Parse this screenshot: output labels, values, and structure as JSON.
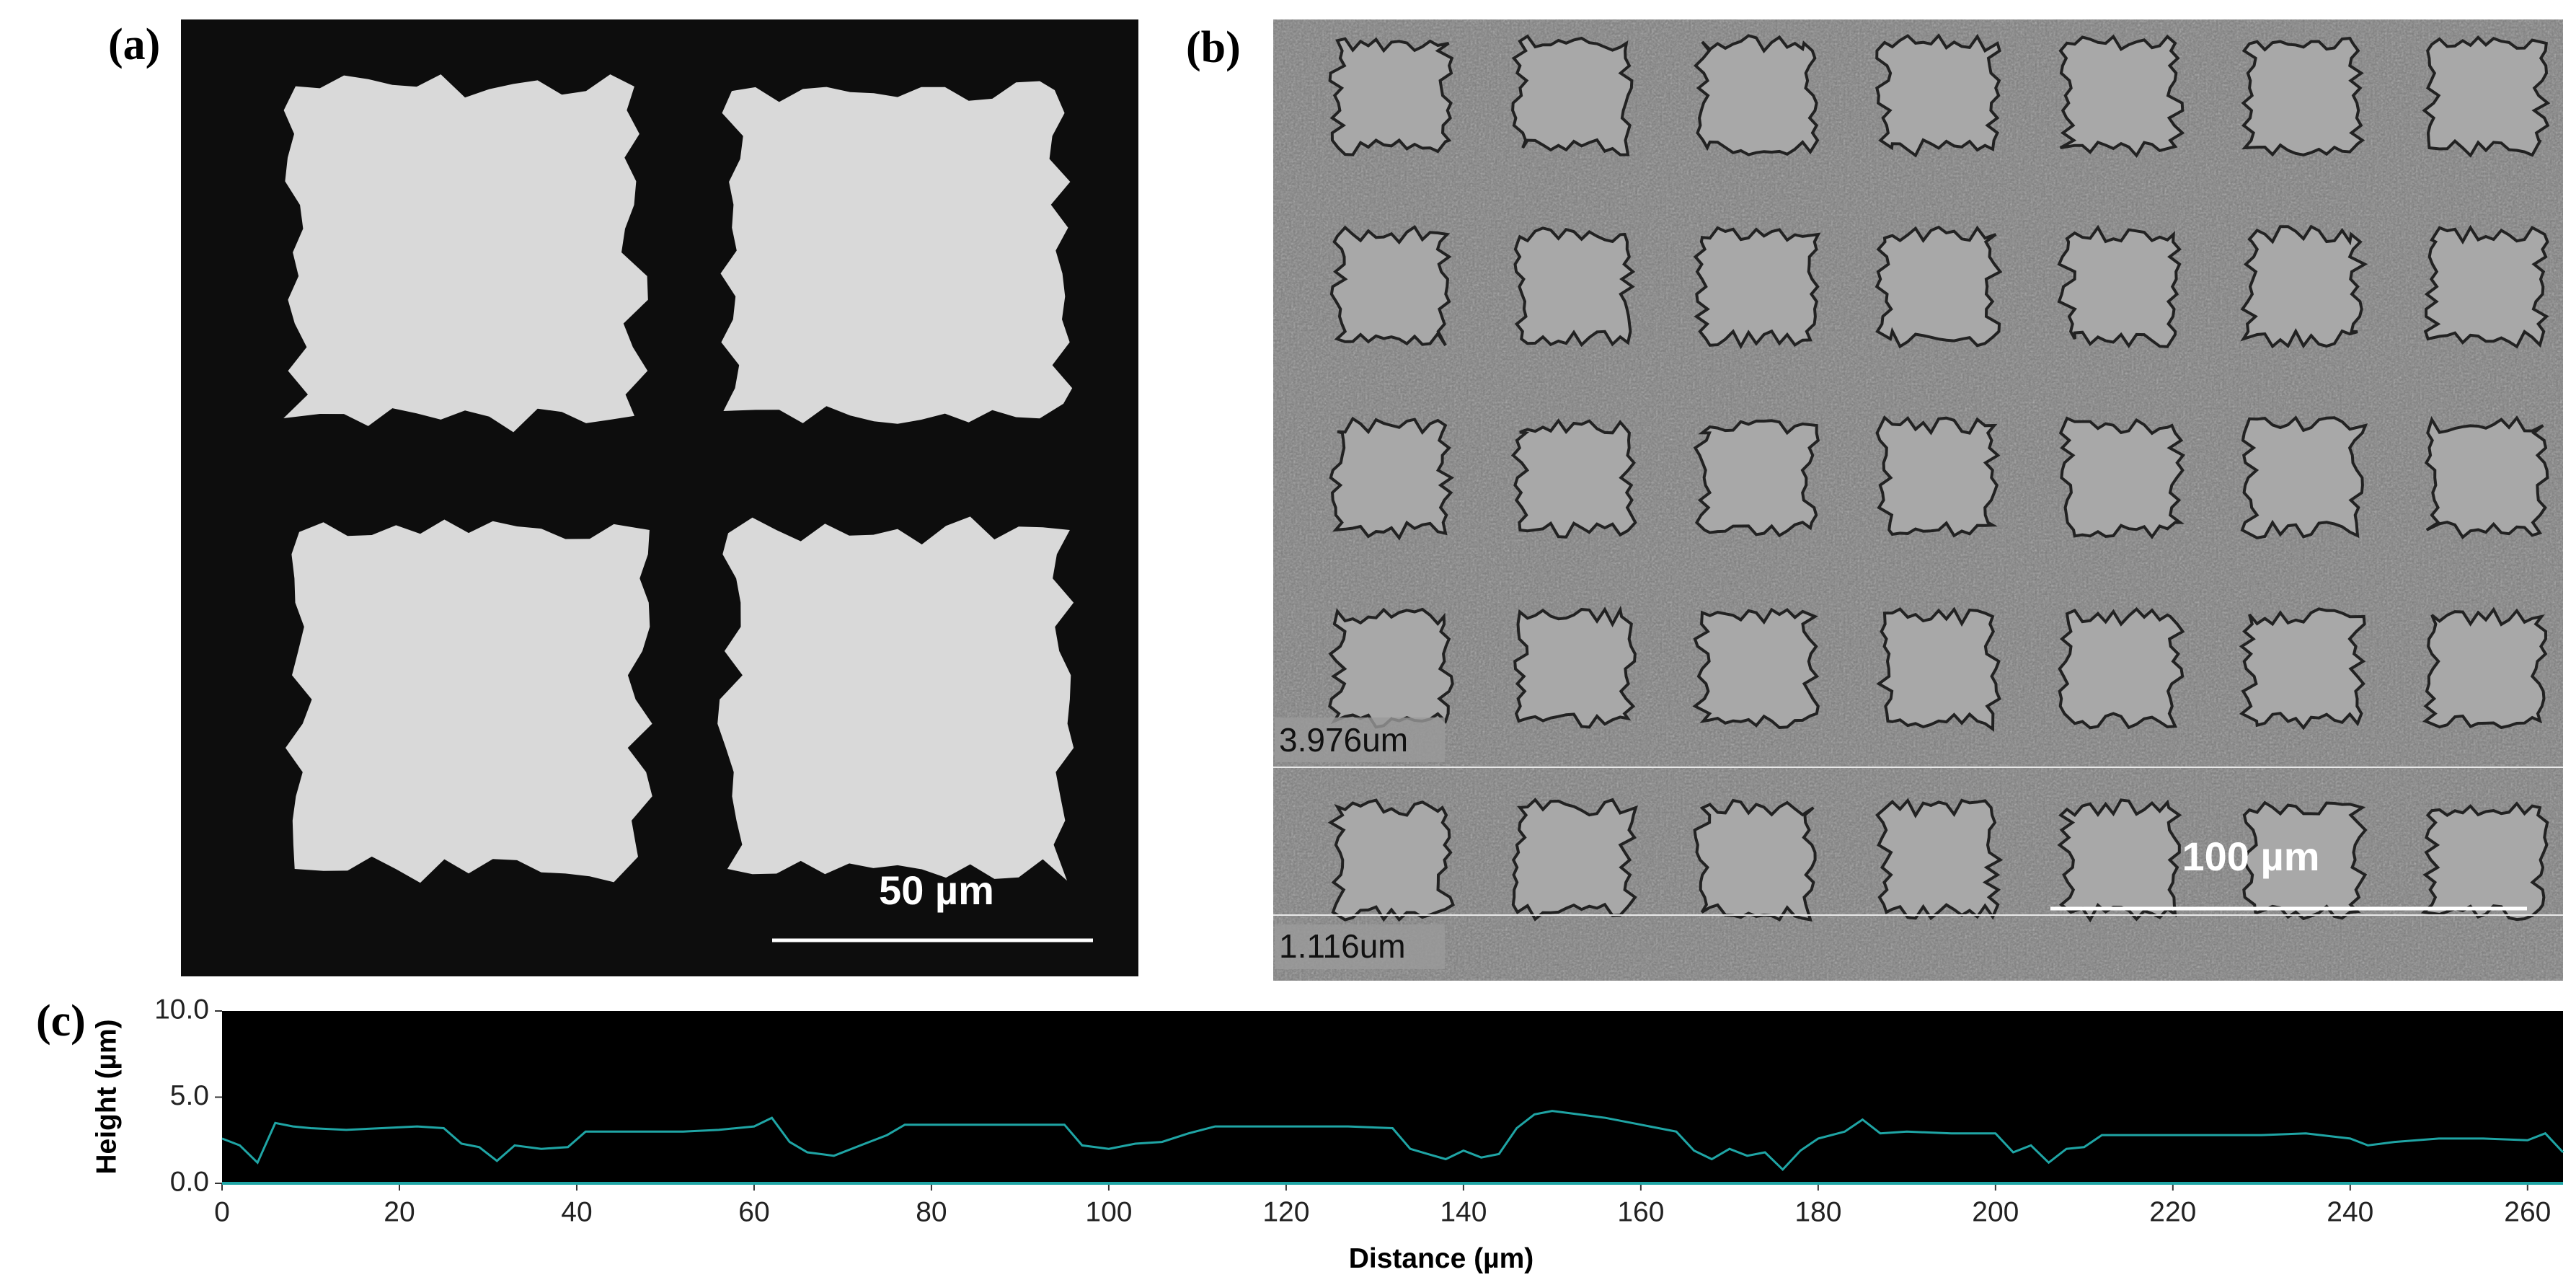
{
  "panels": {
    "a": {
      "label": "(a)",
      "scale_bar": "50 µm"
    },
    "b": {
      "label": "(b)",
      "scale_bar": "100 µm",
      "profile_marks": [
        "3.976um",
        "1.116um"
      ]
    }
  },
  "chart_data": {
    "type": "line",
    "panel_label": "(c)",
    "x_label": "Distance (µm)",
    "y_label": "Height (µm)",
    "x": [
      0,
      2,
      4,
      6,
      8,
      10,
      14,
      18,
      22,
      25,
      27,
      29,
      31,
      33,
      36,
      39,
      41,
      44,
      48,
      52,
      56,
      60,
      62,
      64,
      66,
      69,
      72,
      75,
      77,
      80,
      85,
      90,
      95,
      97,
      100,
      103,
      106,
      109,
      112,
      117,
      122,
      127,
      132,
      134,
      136,
      138,
      140,
      142,
      144,
      146,
      148,
      150,
      153,
      156,
      160,
      164,
      166,
      168,
      170,
      172,
      174,
      176,
      178,
      180,
      183,
      185,
      187,
      190,
      195,
      200,
      202,
      204,
      206,
      208,
      210,
      212,
      216,
      220,
      225,
      230,
      235,
      240,
      242,
      245,
      250,
      255,
      260,
      262,
      264
    ],
    "values": [
      2.6,
      2.2,
      1.2,
      3.5,
      3.3,
      3.2,
      3.1,
      3.2,
      3.3,
      3.2,
      2.3,
      2.1,
      1.3,
      2.2,
      2.0,
      2.1,
      3.0,
      3.0,
      3.0,
      3.0,
      3.1,
      3.3,
      3.8,
      2.4,
      1.8,
      1.6,
      2.2,
      2.8,
      3.4,
      3.4,
      3.4,
      3.4,
      3.4,
      2.2,
      2.0,
      2.3,
      2.4,
      2.9,
      3.3,
      3.3,
      3.3,
      3.3,
      3.2,
      2.0,
      1.7,
      1.4,
      1.9,
      1.5,
      1.7,
      3.2,
      4.0,
      4.2,
      4.0,
      3.8,
      3.4,
      3.0,
      1.9,
      1.4,
      2.0,
      1.6,
      1.8,
      0.8,
      1.9,
      2.6,
      3.0,
      3.7,
      2.9,
      3.0,
      2.9,
      2.9,
      1.8,
      2.2,
      1.2,
      2.0,
      2.1,
      2.8,
      2.8,
      2.8,
      2.8,
      2.8,
      2.9,
      2.6,
      2.2,
      2.4,
      2.6,
      2.6,
      2.5,
      2.9,
      1.8
    ],
    "color": "#1fa5a5",
    "xlim": [
      0,
      264
    ],
    "xticks": [
      0,
      20,
      40,
      60,
      80,
      100,
      120,
      140,
      160,
      180,
      200,
      220,
      240,
      260
    ],
    "ylim": [
      0,
      10
    ],
    "yticks": [
      {
        "value": 0,
        "label": "0.0"
      },
      {
        "value": 5,
        "label": "5.0"
      },
      {
        "value": 10,
        "label": "10.0"
      }
    ]
  }
}
